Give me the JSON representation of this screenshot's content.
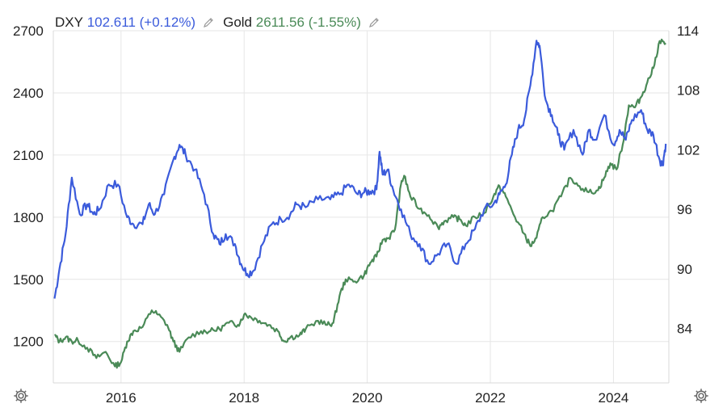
{
  "legend": {
    "dxy_name": "DXY",
    "dxy_value": "102.611",
    "dxy_change": "(+0.12%)",
    "gold_name": "Gold",
    "gold_value": "2611.56",
    "gold_change": "(-1.55%)"
  },
  "icons": {
    "edit": "pencil-icon",
    "settings": "gear-icon"
  },
  "colors": {
    "dxy": "#3b5bdb",
    "gold": "#4a8a57",
    "grid": "#e6e6e6"
  },
  "chart_data": {
    "type": "line",
    "title": "",
    "x_range": [
      2014.9,
      2024.9
    ],
    "x_ticks": [
      "2016",
      "2018",
      "2020",
      "2022",
      "2024"
    ],
    "left_axis": {
      "series": "Gold",
      "range": [
        1000,
        2700
      ],
      "ticks": [
        "1200",
        "1500",
        "1800",
        "2100",
        "2400",
        "2700"
      ]
    },
    "right_axis": {
      "series": "DXY",
      "range": [
        78.5,
        114
      ],
      "ticks": [
        "84",
        "90",
        "96",
        "102",
        "108",
        "114"
      ]
    },
    "grid": true,
    "series": [
      {
        "name": "DXY",
        "axis": "right",
        "x": [
          2014.92,
          2015.0,
          2015.1,
          2015.2,
          2015.33,
          2015.45,
          2015.55,
          2015.65,
          2015.8,
          2015.95,
          2016.1,
          2016.2,
          2016.35,
          2016.45,
          2016.55,
          2016.7,
          2016.85,
          2016.95,
          2017.05,
          2017.2,
          2017.35,
          2017.5,
          2017.6,
          2017.7,
          2017.85,
          2017.95,
          2018.05,
          2018.15,
          2018.3,
          2018.45,
          2018.6,
          2018.75,
          2018.85,
          2019.0,
          2019.2,
          2019.4,
          2019.55,
          2019.7,
          2019.85,
          2019.95,
          2020.05,
          2020.15,
          2020.2,
          2020.25,
          2020.33,
          2020.42,
          2020.55,
          2020.7,
          2020.85,
          2021.0,
          2021.15,
          2021.3,
          2021.45,
          2021.6,
          2021.75,
          2021.9,
          2022.05,
          2022.15,
          2022.25,
          2022.35,
          2022.45,
          2022.55,
          2022.65,
          2022.75,
          2022.8,
          2022.9,
          2023.0,
          2023.1,
          2023.2,
          2023.35,
          2023.5,
          2023.6,
          2023.7,
          2023.85,
          2024.0,
          2024.1,
          2024.2,
          2024.3,
          2024.45,
          2024.55,
          2024.65,
          2024.75,
          2024.8,
          2024.85
        ],
        "y": [
          87,
          90,
          93.5,
          99.2,
          95.5,
          96.5,
          95.5,
          96,
          98.5,
          98.5,
          95.2,
          94.5,
          94.5,
          96.5,
          95.5,
          97.5,
          101,
          102.5,
          101.5,
          100,
          97.5,
          93.5,
          92.5,
          93.5,
          92.5,
          90.5,
          89.5,
          89.8,
          92.5,
          94.5,
          95,
          95.5,
          96.5,
          96.2,
          97,
          97,
          97.5,
          98.5,
          97.5,
          97.7,
          97.8,
          98,
          101.8,
          99.5,
          100,
          98,
          96,
          93.5,
          92.5,
          90.5,
          91.5,
          92.5,
          90.5,
          92.5,
          94,
          96,
          96.5,
          97.5,
          98.5,
          101.5,
          104,
          105,
          108.5,
          113,
          112.5,
          107,
          105.5,
          103.5,
          102,
          104,
          101.5,
          104,
          103,
          105.5,
          102.5,
          104,
          103,
          105,
          106,
          104,
          103.5,
          101,
          100.5,
          102.6
        ]
      },
      {
        "name": "Gold",
        "axis": "left",
        "x": [
          2014.92,
          2015.0,
          2015.1,
          2015.2,
          2015.3,
          2015.45,
          2015.6,
          2015.75,
          2015.9,
          2016.0,
          2016.1,
          2016.2,
          2016.35,
          2016.5,
          2016.6,
          2016.75,
          2016.85,
          2016.95,
          2017.1,
          2017.3,
          2017.45,
          2017.6,
          2017.75,
          2017.9,
          2018.0,
          2018.1,
          2018.25,
          2018.4,
          2018.55,
          2018.65,
          2018.75,
          2018.9,
          2019.0,
          2019.2,
          2019.35,
          2019.45,
          2019.55,
          2019.65,
          2019.8,
          2019.95,
          2020.05,
          2020.15,
          2020.25,
          2020.35,
          2020.45,
          2020.55,
          2020.6,
          2020.7,
          2020.85,
          2021.0,
          2021.15,
          2021.25,
          2021.4,
          2021.5,
          2021.6,
          2021.75,
          2021.9,
          2022.05,
          2022.15,
          2022.25,
          2022.4,
          2022.55,
          2022.65,
          2022.75,
          2022.85,
          2023.0,
          2023.15,
          2023.3,
          2023.45,
          2023.6,
          2023.75,
          2023.85,
          2023.95,
          2024.05,
          2024.15,
          2024.25,
          2024.35,
          2024.45,
          2024.55,
          2024.65,
          2024.75,
          2024.85
        ],
        "y": [
          1230,
          1200,
          1220,
          1200,
          1205,
          1170,
          1120,
          1150,
          1080,
          1100,
          1200,
          1250,
          1270,
          1350,
          1330,
          1280,
          1200,
          1150,
          1220,
          1250,
          1250,
          1260,
          1290,
          1280,
          1330,
          1320,
          1300,
          1280,
          1250,
          1200,
          1220,
          1230,
          1260,
          1300,
          1280,
          1290,
          1420,
          1500,
          1490,
          1520,
          1580,
          1610,
          1690,
          1700,
          1740,
          1960,
          2000,
          1900,
          1840,
          1810,
          1750,
          1780,
          1800,
          1790,
          1760,
          1800,
          1820,
          1900,
          1950,
          1900,
          1800,
          1720,
          1660,
          1700,
          1800,
          1830,
          1900,
          1990,
          1950,
          1920,
          1930,
          1990,
          2060,
          2030,
          2150,
          2340,
          2330,
          2380,
          2450,
          2520,
          2650,
          2640
        ]
      }
    ]
  }
}
